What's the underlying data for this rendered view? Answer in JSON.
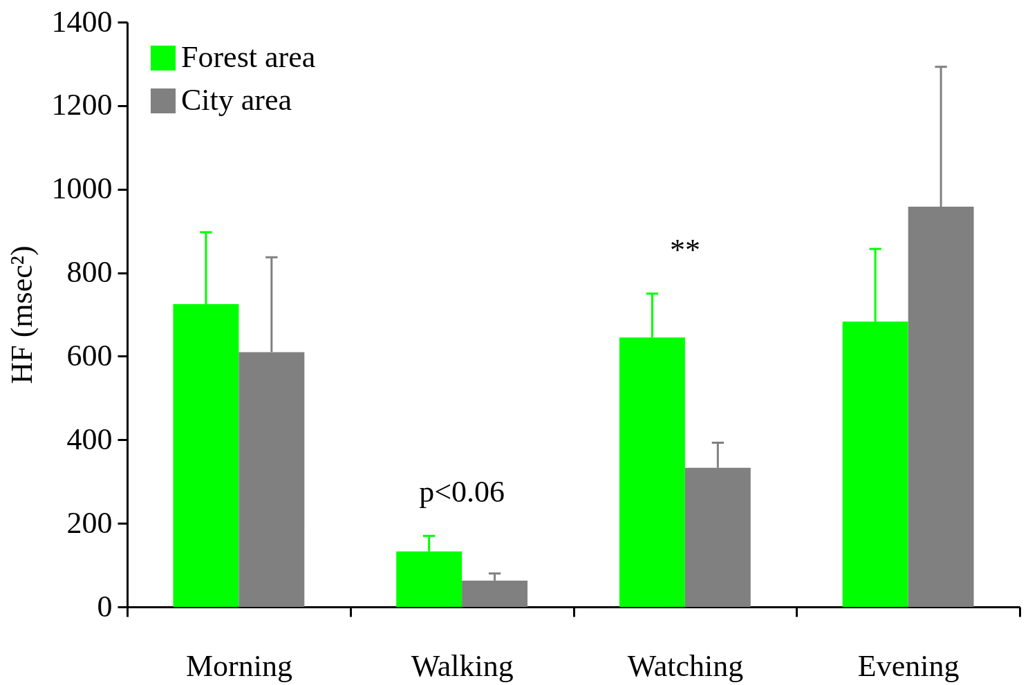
{
  "chart_data": {
    "type": "bar",
    "ylabel": "HF (msec²)",
    "categories": [
      "Morning",
      "Walking",
      "Watching",
      "Evening"
    ],
    "series": [
      {
        "name": "Forest area",
        "color": "#00ff00",
        "values": [
          725,
          133,
          645,
          683
        ],
        "errors": [
          [
            725,
            897
          ],
          [
            133,
            170
          ],
          [
            645,
            750
          ],
          [
            683,
            857
          ]
        ]
      },
      {
        "name": "City area",
        "color": "#808080",
        "values": [
          610,
          63,
          333,
          958
        ],
        "errors": [
          [
            610,
            837
          ],
          [
            63,
            80
          ],
          [
            333,
            393
          ],
          [
            958,
            1293
          ]
        ]
      }
    ],
    "ylim": [
      0,
      1400
    ],
    "yticks": [
      0,
      200,
      400,
      600,
      800,
      1000,
      1200,
      1400
    ],
    "grid": false,
    "legend": "top left",
    "annotations": [
      "p<0.06",
      "**"
    ]
  }
}
